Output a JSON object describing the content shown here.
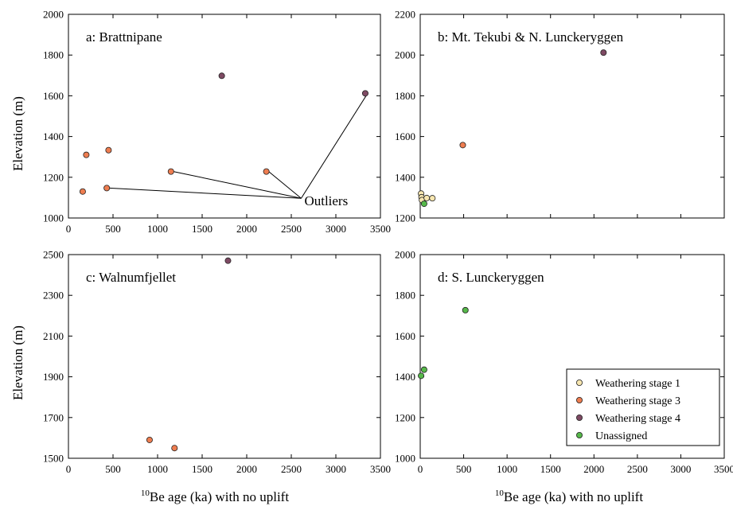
{
  "figure": {
    "xlabel_superscript": "10",
    "xlabel_rest": "Be age (ka) with no uplift",
    "ylabel": "Elevation (m)"
  },
  "colors": {
    "Weathering stage 1": "#f7e6b0",
    "Weathering stage 3": "#ee7d50",
    "Weathering stage 4": "#7e4a63",
    "Unassigned": "#56b84a"
  },
  "legend": {
    "placement": "bottom-right of panel d",
    "entries": [
      "Weathering stage 1",
      "Weathering stage 3",
      "Weathering stage 4",
      "Unassigned"
    ]
  },
  "chart_data": [
    {
      "type": "scatter",
      "title": "a: Brattnipane",
      "xlabel": "",
      "ylabel": "Elevation (m)",
      "xlim": [
        0,
        3500
      ],
      "ylim": [
        1000,
        2000
      ],
      "xticks": [
        0,
        500,
        1000,
        1500,
        2000,
        2500,
        3000,
        3500
      ],
      "yticks": [
        1000,
        1200,
        1400,
        1600,
        1800,
        2000
      ],
      "show_xtick_labels": true,
      "grid": false,
      "points": [
        {
          "x": 160,
          "y": 1130,
          "group": "Weathering stage 3"
        },
        {
          "x": 200,
          "y": 1310,
          "group": "Weathering stage 3"
        },
        {
          "x": 430,
          "y": 1147,
          "group": "Weathering stage 3"
        },
        {
          "x": 450,
          "y": 1333,
          "group": "Weathering stage 3"
        },
        {
          "x": 1150,
          "y": 1228,
          "group": "Weathering stage 3"
        },
        {
          "x": 2220,
          "y": 1228,
          "group": "Weathering stage 3"
        },
        {
          "x": 1720,
          "y": 1698,
          "group": "Weathering stage 4"
        },
        {
          "x": 3330,
          "y": 1612,
          "group": "Weathering stage 4"
        }
      ],
      "annotation": {
        "text": "Outliers",
        "anchor": {
          "x": 2620,
          "y": 1085
        },
        "targets": [
          {
            "x": 430,
            "y": 1147
          },
          {
            "x": 1150,
            "y": 1228
          },
          {
            "x": 2220,
            "y": 1228
          },
          {
            "x": 3330,
            "y": 1612
          }
        ]
      }
    },
    {
      "type": "scatter",
      "title": "b: Mt. Tekubi & N. Lunckeryggen",
      "xlabel": "",
      "ylabel": "",
      "xlim": [
        0,
        3500
      ],
      "ylim": [
        1200,
        2200
      ],
      "xticks": [
        0,
        500,
        1000,
        1500,
        2000,
        2500,
        3000,
        3500
      ],
      "yticks": [
        1200,
        1400,
        1600,
        1800,
        2000,
        2200
      ],
      "show_xtick_labels": false,
      "grid": false,
      "points": [
        {
          "x": 10,
          "y": 1320,
          "group": "Weathering stage 1"
        },
        {
          "x": 15,
          "y": 1302,
          "group": "Weathering stage 1"
        },
        {
          "x": 20,
          "y": 1288,
          "group": "Weathering stage 1"
        },
        {
          "x": 75,
          "y": 1298,
          "group": "Weathering stage 1"
        },
        {
          "x": 140,
          "y": 1297,
          "group": "Weathering stage 1"
        },
        {
          "x": 45,
          "y": 1270,
          "group": "Unassigned"
        },
        {
          "x": 490,
          "y": 1558,
          "group": "Weathering stage 3"
        },
        {
          "x": 2110,
          "y": 2012,
          "group": "Weathering stage 4"
        }
      ]
    },
    {
      "type": "scatter",
      "title": "c: Walnumfjellet",
      "xlabel": "10Be age (ka) with no uplift",
      "ylabel": "Elevation (m)",
      "xlim": [
        0,
        3500
      ],
      "ylim": [
        1500,
        2500
      ],
      "xticks": [
        0,
        500,
        1000,
        1500,
        2000,
        2500,
        3000,
        3500
      ],
      "yticks": [
        1500,
        1700,
        1900,
        2100,
        2300,
        2500
      ],
      "show_xtick_labels": true,
      "grid": false,
      "points": [
        {
          "x": 910,
          "y": 1590,
          "group": "Weathering stage 3"
        },
        {
          "x": 1190,
          "y": 1550,
          "group": "Weathering stage 3"
        },
        {
          "x": 1790,
          "y": 2470,
          "group": "Weathering stage 4"
        }
      ]
    },
    {
      "type": "scatter",
      "title": "d: S. Lunckeryggen",
      "xlabel": "10Be age (ka) with no uplift",
      "ylabel": "",
      "xlim": [
        0,
        3500
      ],
      "ylim": [
        1000,
        2000
      ],
      "xticks": [
        0,
        500,
        1000,
        1500,
        2000,
        2500,
        3000,
        3500
      ],
      "yticks": [
        1000,
        1200,
        1400,
        1600,
        1800,
        2000
      ],
      "show_xtick_labels": true,
      "grid": false,
      "points": [
        {
          "x": 10,
          "y": 1405,
          "group": "Unassigned"
        },
        {
          "x": 45,
          "y": 1435,
          "group": "Unassigned"
        },
        {
          "x": 520,
          "y": 1727,
          "group": "Unassigned"
        }
      ]
    }
  ]
}
